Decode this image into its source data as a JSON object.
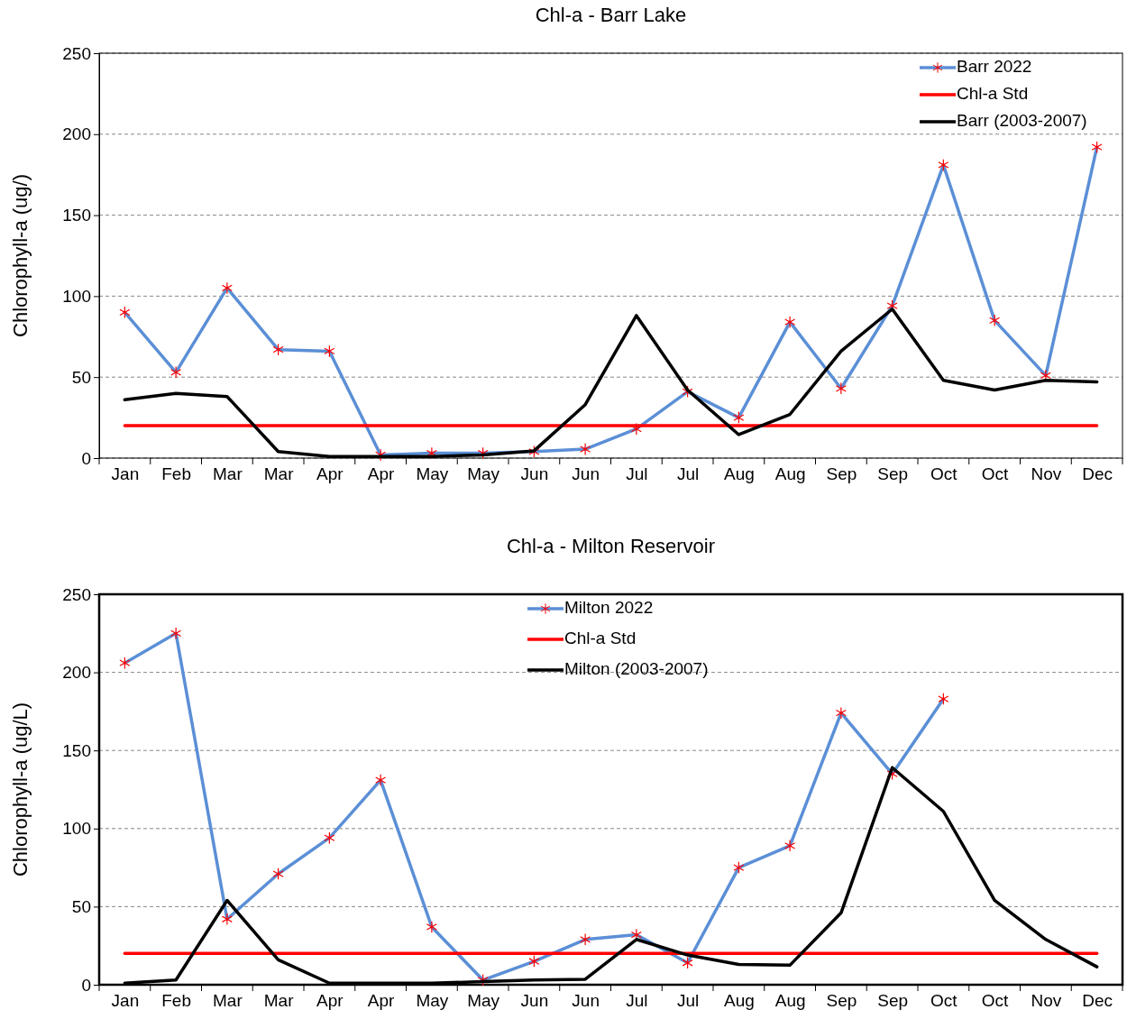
{
  "chart_data": [
    {
      "type": "line",
      "title": "Chl-a - Barr Lake",
      "ylabel": "Chlorophyll-a (ug/)",
      "categories": [
        "Jan",
        "Feb",
        "Mar",
        "Mar",
        "Apr",
        "Apr",
        "May",
        "May",
        "Jun",
        "Jun",
        "Jul",
        "Jul",
        "Aug",
        "Aug",
        "Sep",
        "Sep",
        "Oct",
        "Oct",
        "Nov",
        "Dec"
      ],
      "ylim": [
        0,
        250
      ],
      "yticks": [
        0,
        50,
        100,
        150,
        200,
        250
      ],
      "grid": "y",
      "legend": "top right",
      "series": [
        {
          "name": "Barr 2022",
          "color": "#5b8fd6",
          "marker": "cross",
          "values": [
            90,
            53,
            105,
            67,
            66,
            2,
            3,
            3,
            4,
            5.5,
            18,
            41,
            25,
            84,
            43,
            94,
            181,
            85,
            51,
            192
          ]
        },
        {
          "name": "Chl-a Std",
          "color": "#ff0000",
          "values": [
            20,
            20,
            20,
            20,
            20,
            20,
            20,
            20,
            20,
            20,
            20,
            20,
            20,
            20,
            20,
            20,
            20,
            20,
            20,
            20
          ]
        },
        {
          "name": "Barr (2003-2007)",
          "color": "#000000",
          "values": [
            36,
            40,
            38,
            4,
            1,
            1,
            1,
            2,
            4.5,
            33,
            88,
            42,
            14.5,
            27,
            66,
            92,
            48,
            42,
            48,
            47
          ]
        }
      ]
    },
    {
      "type": "line",
      "title": "Chl-a - Milton Reservoir",
      "ylabel": "Chlorophyll-a (ug/L)",
      "categories": [
        "Jan",
        "Feb",
        "Mar",
        "Mar",
        "Apr",
        "Apr",
        "May",
        "May",
        "Jun",
        "Jun",
        "Jul",
        "Jul",
        "Aug",
        "Aug",
        "Sep",
        "Sep",
        "Oct",
        "Oct",
        "Nov",
        "Dec"
      ],
      "ylim": [
        0,
        250
      ],
      "yticks": [
        0,
        50,
        100,
        150,
        200,
        250
      ],
      "grid": "y",
      "legend": "top",
      "series": [
        {
          "name": "Milton 2022",
          "color": "#5b8fd6",
          "marker": "cross",
          "values": [
            206,
            225,
            42,
            71,
            94,
            131,
            37,
            3,
            15,
            29,
            32,
            14,
            75,
            89,
            174,
            135,
            183,
            null,
            null,
            null
          ]
        },
        {
          "name": "Chl-a Std",
          "color": "#ff0000",
          "values": [
            20,
            20,
            20,
            20,
            20,
            20,
            20,
            20,
            20,
            20,
            20,
            20,
            20,
            20,
            20,
            20,
            20,
            20,
            20,
            20
          ]
        },
        {
          "name": "Milton (2003-2007)",
          "color": "#000000",
          "values": [
            1,
            3,
            54,
            16,
            1,
            1,
            1,
            2,
            3,
            3.5,
            29,
            19,
            13,
            12.5,
            46,
            139,
            111,
            54,
            29,
            11.5
          ]
        }
      ]
    }
  ]
}
